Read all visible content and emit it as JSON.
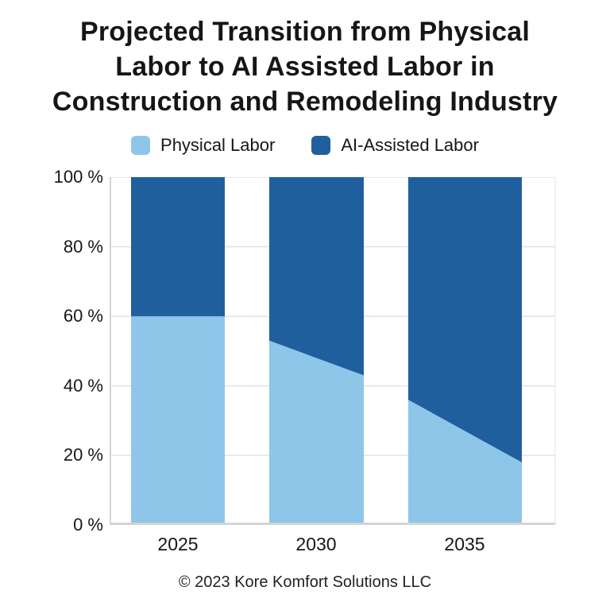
{
  "header": {
    "title_lines": [
      "Projected Transition from Physical",
      "Labor to AI Assisted Labor in",
      "Construction and Remodeling Industry"
    ]
  },
  "legend": {
    "items": [
      {
        "label": "Physical Labor",
        "color": "#8ec6ea"
      },
      {
        "label": "AI-Assisted Labor",
        "color": "#205f9e"
      }
    ]
  },
  "footer": {
    "copyright": "© 2023 Kore Komfort Solutions LLC"
  },
  "chart_data": {
    "type": "bar",
    "variant": "100% stacked vertical bars with sloped boundaries between segments",
    "title": "Projected Transition from Physical Labor to AI Assisted Labor in Construction and Remodeling Industry",
    "categories": [
      "2025",
      "2030",
      "2035"
    ],
    "y_ticks": [
      "100 %",
      "80 %",
      "60 %",
      "40 %",
      "20 %",
      "0 %"
    ],
    "ylim": [
      0,
      100
    ],
    "grid": "horizontal gridlines every 20%",
    "legend_position": "top",
    "series": [
      {
        "name": "Physical Labor",
        "color": "#8ec6ea",
        "values_bar_left_edge": [
          60,
          53,
          36
        ],
        "values_bar_right_edge": [
          60,
          43,
          18
        ]
      },
      {
        "name": "AI-Assisted Labor",
        "color": "#205f9e",
        "values_bar_left_edge": [
          40,
          47,
          64
        ],
        "values_bar_right_edge": [
          40,
          57,
          82
        ]
      }
    ],
    "colors": {
      "gridline": "#e3e3e3",
      "axis_border": "#d4d4d4",
      "text": "#161616"
    }
  }
}
